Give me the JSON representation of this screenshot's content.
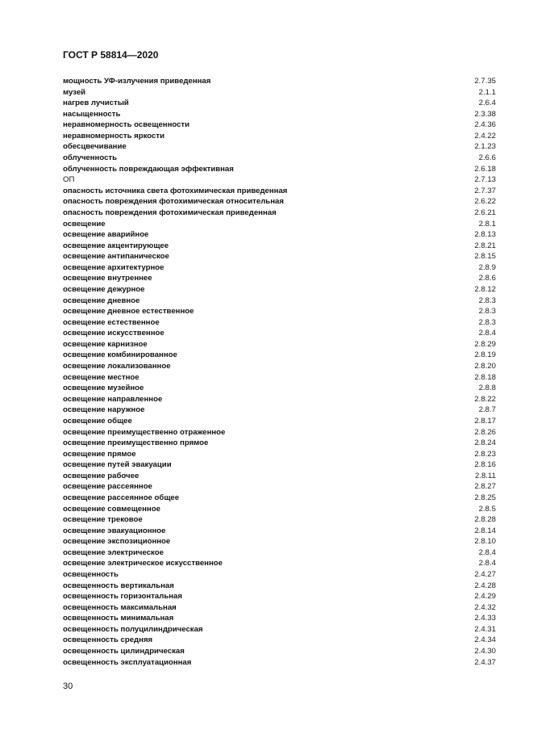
{
  "header": {
    "title": "ГОСТ Р 58814—2020"
  },
  "entries": [
    {
      "term": "мощность УФ-излучения приведенная",
      "ref": "2.7.35"
    },
    {
      "term": "музей",
      "ref": "2.1.1"
    },
    {
      "term": "нагрев лучистый",
      "ref": "2.6.4"
    },
    {
      "term": "насыщенность",
      "ref": "2.3.38"
    },
    {
      "term": "неравномерность освещенности",
      "ref": "2.4.36"
    },
    {
      "term": "неравномерность яркости",
      "ref": "2.4.22"
    },
    {
      "term": "обесцвечивание",
      "ref": "2.1.23"
    },
    {
      "term": "облученность",
      "ref": "2.6.6"
    },
    {
      "term": "облученность повреждающая эффективная",
      "ref": "2.6.18"
    },
    {
      "term": "ОП",
      "ref": "2.7.13",
      "plain": true
    },
    {
      "term": "опасность источника света фотохимическая приведенная",
      "ref": "2.7.37"
    },
    {
      "term": "опасность повреждения фотохимическая относительная",
      "ref": "2.6.22"
    },
    {
      "term": "опасность повреждения фотохимическая приведенная",
      "ref": "2.6.21"
    },
    {
      "term": "освещение",
      "ref": "2.8.1"
    },
    {
      "term": "освещение аварийное",
      "ref": "2.8.13"
    },
    {
      "term": "освещение акцентирующее",
      "ref": "2.8.21"
    },
    {
      "term": "освещение антипаническое",
      "ref": "2.8.15"
    },
    {
      "term": "освещение архитектурное",
      "ref": "2.8.9"
    },
    {
      "term": "освещение внутреннее",
      "ref": "2.8.6"
    },
    {
      "term": "освещение дежурное",
      "ref": "2.8.12"
    },
    {
      "term": "освещение дневное",
      "ref": "2.8.3"
    },
    {
      "term": "освещение дневное естественное",
      "ref": "2.8.3"
    },
    {
      "term": "освещение естественное",
      "ref": "2.8.3"
    },
    {
      "term": "освещение искусственное",
      "ref": "2.8.4"
    },
    {
      "term": "освещение карнизное",
      "ref": "2.8.29"
    },
    {
      "term": "освещение комбинированное",
      "ref": "2.8.19"
    },
    {
      "term": "освещение локализованное",
      "ref": "2.8.20"
    },
    {
      "term": "освещение местное",
      "ref": "2.8.18"
    },
    {
      "term": "освещение музейное",
      "ref": "2.8.8"
    },
    {
      "term": "освещение направленное",
      "ref": "2.8.22"
    },
    {
      "term": "освещение наружное",
      "ref": "2.8.7"
    },
    {
      "term": "освещение общее",
      "ref": "2.8.17"
    },
    {
      "term": "освещение преимущественно отраженное",
      "ref": "2.8.26"
    },
    {
      "term": "освещение преимущественно прямое",
      "ref": "2.8.24"
    },
    {
      "term": "освещение прямое",
      "ref": "2.8.23"
    },
    {
      "term": "освещение путей эвакуации",
      "ref": "2.8.16"
    },
    {
      "term": "освещение рабочее",
      "ref": "2.8.11"
    },
    {
      "term": "освещение рассеянное",
      "ref": "2.8.27"
    },
    {
      "term": "освещение рассеянное общее",
      "ref": "2.8.25"
    },
    {
      "term": "освещение совмещенное",
      "ref": "2.8.5"
    },
    {
      "term": "освещение трековое",
      "ref": "2.8.28"
    },
    {
      "term": "освещение эвакуационное",
      "ref": "2.8.14"
    },
    {
      "term": "освещение экспозиционное",
      "ref": "2.8.10"
    },
    {
      "term": "освещение электрическое",
      "ref": "2.8.4"
    },
    {
      "term": "освещение электрическое искусственное",
      "ref": "2.8.4"
    },
    {
      "term": "освещенность",
      "ref": "2.4.27"
    },
    {
      "term": "освещенность вертикальная",
      "ref": "2.4.28"
    },
    {
      "term": "освещенность горизонтальная",
      "ref": "2.4.29"
    },
    {
      "term": "освещенность максимальная",
      "ref": "2.4.32"
    },
    {
      "term": "освещенность минимальная",
      "ref": "2.4.33"
    },
    {
      "term": "освещенность полуцилиндрическая",
      "ref": "2.4.31"
    },
    {
      "term": "освещенность средняя",
      "ref": "2.4.34"
    },
    {
      "term": "освещенность цилиндрическая",
      "ref": "2.4.30"
    },
    {
      "term": "освещенность эксплуатационная",
      "ref": "2.4.37"
    }
  ],
  "footer": {
    "page_number": "30"
  }
}
